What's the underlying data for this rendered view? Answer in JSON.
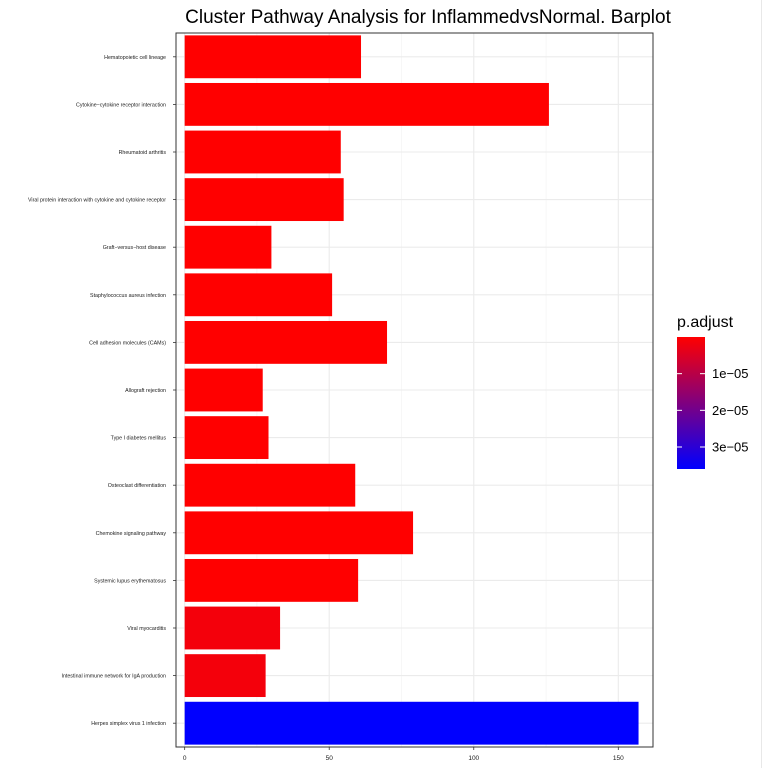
{
  "chart_data": {
    "type": "bar",
    "orientation": "horizontal",
    "title": "Cluster Pathway Analysis for InflammedvsNormal. Barplot",
    "xlabel": "",
    "ylabel": "",
    "xlim": [
      -3,
      162
    ],
    "x_ticks": [
      0,
      50,
      100,
      150
    ],
    "x_tick_labels": [
      "0",
      "50",
      "100",
      "150"
    ],
    "grid": true,
    "categories": [
      "Hematopoietic cell lineage",
      "Cytokine−cytokine receptor interaction",
      "Rheumatoid arthritis",
      "Viral protein interaction with cytokine and cytokine receptor",
      "Graft−versus−host disease",
      "Staphylococcus aureus infection",
      "Cell adhesion molecules (CAMs)",
      "Allograft rejection",
      "Type I diabetes mellitus",
      "Osteoclast differentiation",
      "Chemokine signaling pathway",
      "Systemic lupus erythematosus",
      "Viral myocarditis",
      "Intestinal immune network for IgA production",
      "Herpes simplex virus 1 infection"
    ],
    "values": [
      61,
      126,
      54,
      55,
      30,
      51,
      70,
      27,
      29,
      59,
      79,
      60,
      33,
      28,
      157
    ],
    "p_adjust": [
      1e-09,
      1e-09,
      1e-09,
      1e-09,
      1e-09,
      1e-09,
      1e-09,
      1e-09,
      1e-09,
      1e-09,
      1e-09,
      1e-09,
      1.5e-06,
      1.5e-06,
      3.6e-05
    ],
    "legend": {
      "title": "p.adjust",
      "placement": "right",
      "min": 0,
      "max": 3.6e-05,
      "low_color": "#FF0000",
      "high_color": "#0000FF",
      "tick_values": [
        1e-05,
        2e-05,
        3e-05
      ],
      "tick_labels": [
        "1e−05",
        "2e−05",
        "3e−05"
      ]
    }
  }
}
